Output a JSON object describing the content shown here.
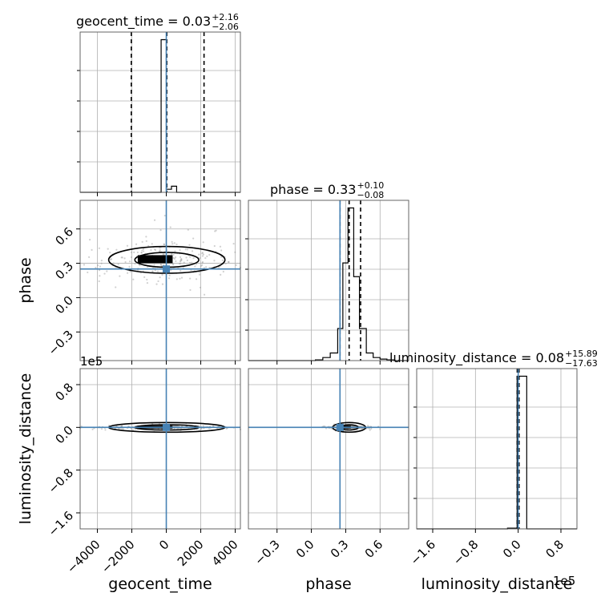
{
  "chart_data": {
    "type": "corner",
    "parameters": [
      "geocent_time",
      "phase",
      "luminosity_distance"
    ],
    "axis_labels": {
      "x": [
        "geocent_time",
        "phase",
        "luminosity_distance"
      ],
      "y": [
        "phase",
        "luminosity_distance"
      ]
    },
    "ranges": {
      "geocent_time": [
        -5000,
        4300
      ],
      "phase": [
        -0.55,
        0.85
      ],
      "luminosity_distance": [
        -190000,
        110000
      ]
    },
    "ticks": {
      "geocent_time": {
        "values": [
          -4000,
          -2000,
          0,
          2000,
          4000
        ],
        "labels": [
          "−4000",
          "−2000",
          "0",
          "2000",
          "4000"
        ]
      },
      "phase": {
        "values": [
          -0.3,
          0.0,
          0.3,
          0.6
        ],
        "labels": [
          "−0.3",
          "0.0",
          "0.3",
          "0.6"
        ]
      },
      "luminosity_distance": {
        "values": [
          -160000,
          -80000,
          0,
          80000
        ],
        "labels": [
          "−1.6",
          "−0.8",
          "0.0",
          "0.8"
        ],
        "offset_label": "1e5"
      }
    },
    "titles": [
      {
        "param": "geocent_time",
        "text": "geocent_time = 0.03",
        "plus": "+2.16",
        "minus": "−2.06"
      },
      {
        "param": "phase",
        "text": "phase = 0.33",
        "plus": "+0.10",
        "minus": "−0.08"
      },
      {
        "param": "luminosity_distance",
        "text": "luminosity_distance = 0.08",
        "plus": "+15.89",
        "minus": "−17.63"
      }
    ],
    "histograms": {
      "geocent_time": {
        "edges": [
          -300,
          0,
          300,
          600
        ],
        "counts": [
          1,
          0.02,
          0.04
        ]
      },
      "phase": {
        "edges": [
          -0.55,
          -0.485,
          -0.42,
          -0.355,
          -0.29,
          -0.225,
          -0.16,
          -0.095,
          -0.03,
          0.035,
          0.1,
          0.165,
          0.23,
          0.275,
          0.32,
          0.37,
          0.42,
          0.48,
          0.54,
          0.6,
          0.66,
          0.72
        ],
        "counts": [
          0,
          0,
          0,
          0,
          0,
          0,
          0,
          0,
          0,
          0.005,
          0.02,
          0.05,
          0.21,
          0.64,
          1.0,
          0.55,
          0.21,
          0.05,
          0.02,
          0.01,
          0.005
        ]
      },
      "luminosity_distance": {
        "edges": [
          -20000,
          -2000,
          16000
        ],
        "counts": [
          0.005,
          1
        ]
      }
    },
    "quantiles": {
      "geocent_time": [
        -2030,
        30,
        2190
      ],
      "phase": [
        0.25,
        0.33,
        0.43
      ],
      "luminosity_distance": [
        -1755,
        8,
        1597
      ]
    },
    "truths": {
      "geocent_time": 0,
      "phase": 0.25,
      "luminosity_distance": 0
    },
    "grid": true
  }
}
